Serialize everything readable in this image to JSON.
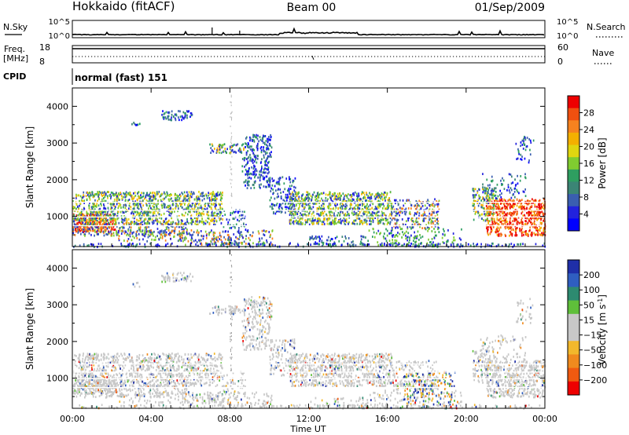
{
  "header": {
    "station": "Hokkaido (fitACF)",
    "beam": "Beam 00",
    "date": "01/Sep/2009"
  },
  "status_panel": {
    "nsky_label": "N.Sky",
    "nsearch_label": "N.Search",
    "nsky_ticks": [
      "10^5",
      "10^0"
    ],
    "nsky_right_ticks": [
      "10^5",
      "10^0"
    ],
    "freq_label": "Freq.",
    "freq_unit": "[MHz]",
    "freq_ticks": [
      "18",
      "8"
    ],
    "nave_label": "Nave",
    "nave_ticks": [
      "60",
      "0"
    ],
    "cpid_label": "CPID",
    "cpid_value": "normal (fast) 151"
  },
  "time_axis": {
    "label": "Time UT",
    "ticks": [
      "00:00",
      "04:00",
      "08:00",
      "12:00",
      "16:00",
      "20:00",
      "00:00"
    ]
  },
  "chart_data": [
    {
      "type": "heatmap",
      "name": "power",
      "ylabel": "Slant Range [km]",
      "ylim": [
        180,
        4500
      ],
      "yticks": [
        "1000",
        "2000",
        "3000",
        "4000"
      ],
      "xlim_hours": [
        0,
        24
      ],
      "colorbar_label": "Power [dB]",
      "colorbar_ticks": [
        "28",
        "24",
        "20",
        "16",
        "12",
        "8",
        "4"
      ],
      "colorbar_colors": [
        "#ee0000",
        "#f05010",
        "#f6821f",
        "#f4b000",
        "#e0d610",
        "#80cc30",
        "#2e9e60",
        "#3b8575",
        "#3a5eb0",
        "#2222dd",
        "#0000ff"
      ]
    },
    {
      "type": "heatmap",
      "name": "velocity",
      "ylabel": "Slant Range [km]",
      "ylim": [
        180,
        4500
      ],
      "yticks": [
        "1000",
        "2000",
        "3000",
        "4000"
      ],
      "xlim_hours": [
        0,
        24
      ],
      "colorbar_label": "Velocity [m s",
      "colorbar_label_sup": "-1",
      "colorbar_label_end": "]",
      "colorbar_ticks": [
        "200",
        "100",
        "50",
        "15",
        "−15",
        "−50",
        "−100",
        "−200"
      ],
      "colorbar_colors": [
        "#1f2fa8",
        "#2f5ec0",
        "#2d8a70",
        "#5fbf3a",
        "#c8c8c8",
        "#c8c8c8",
        "#f2b82c",
        "#f08a1e",
        "#f05a10",
        "#ee0000"
      ]
    }
  ]
}
